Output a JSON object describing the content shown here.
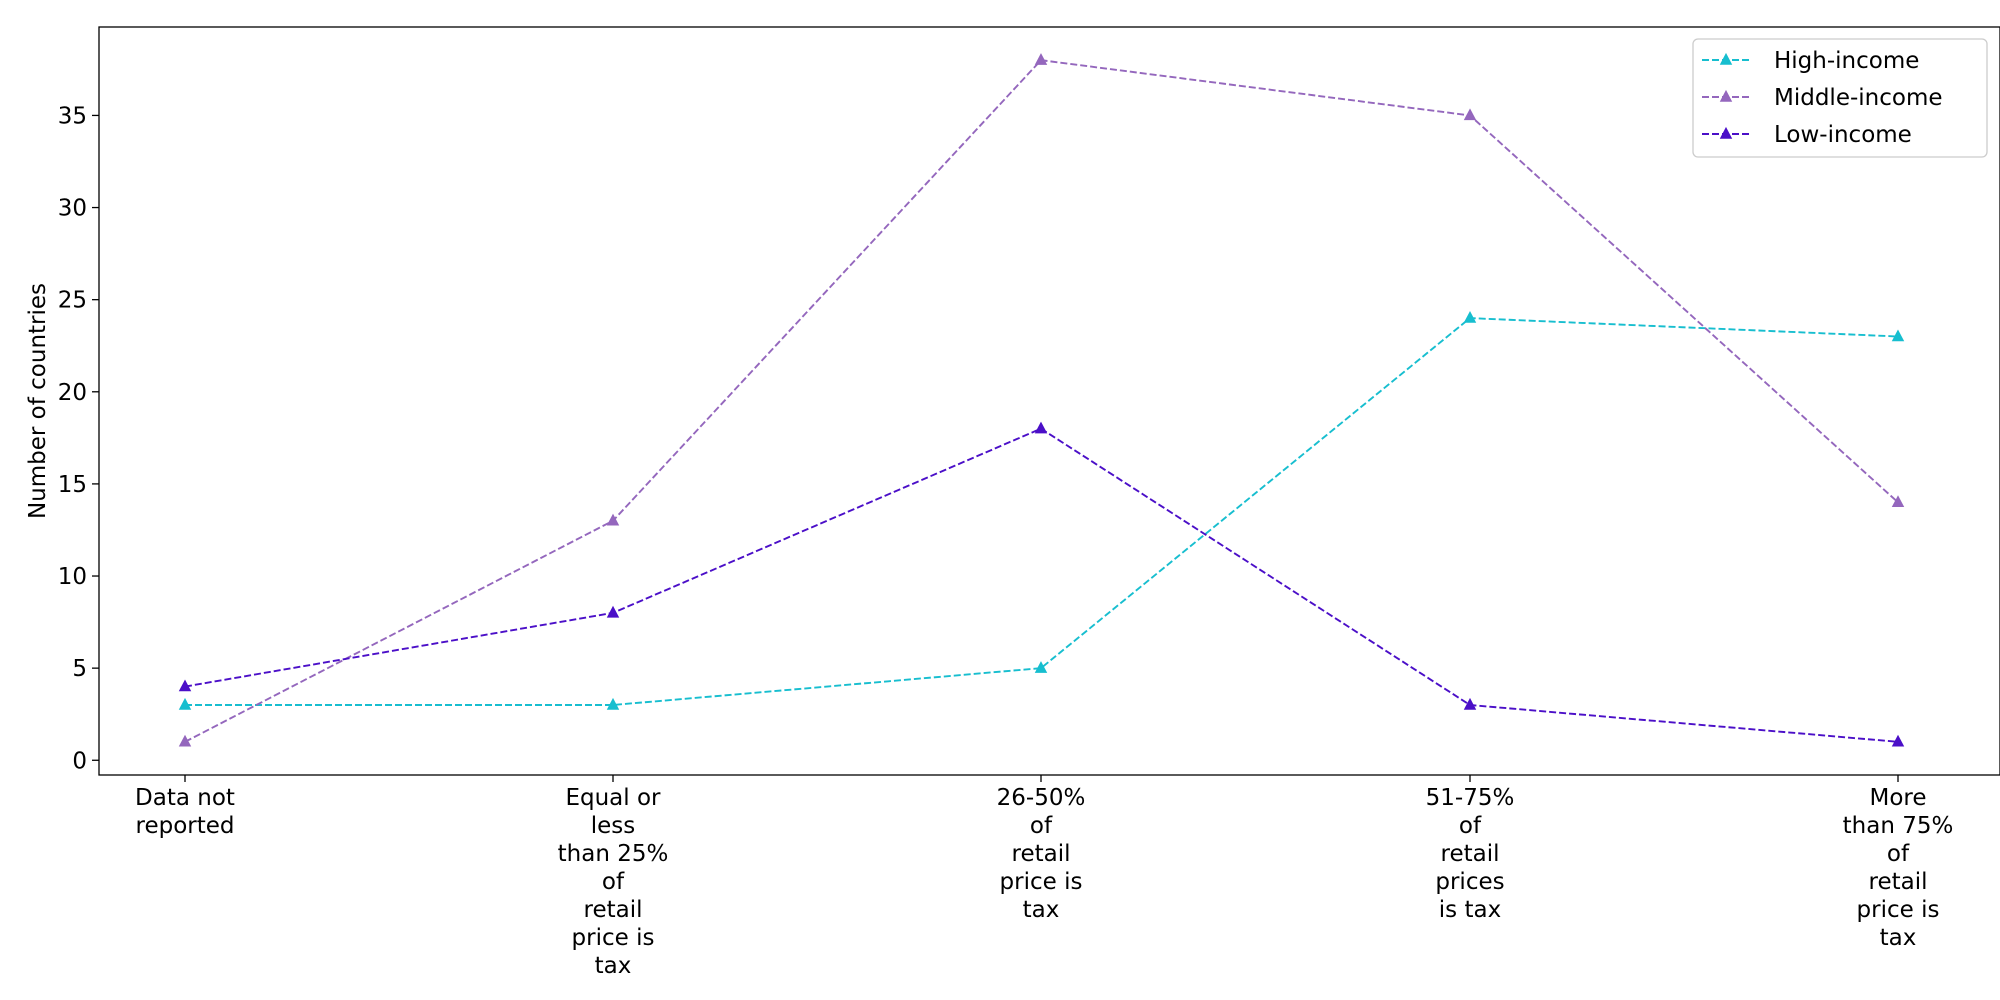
{
  "chart_data": {
    "type": "line",
    "title": "",
    "xlabel": "",
    "ylabel": "Number of countries",
    "categories": [
      [
        "Data not",
        "reported"
      ],
      [
        "Equal or",
        "less",
        "than 25%",
        "of",
        "retail",
        "price is",
        "tax"
      ],
      [
        "26-50%",
        "of",
        "retail",
        "price is",
        "tax"
      ],
      [
        "51-75%",
        "of",
        "retail",
        "prices",
        "is tax"
      ],
      [
        "More",
        "than 75%",
        "of",
        "retail",
        "price is",
        "tax"
      ]
    ],
    "ylim": [
      -0.8,
      39.8
    ],
    "yticks": [
      0,
      5,
      10,
      15,
      20,
      25,
      30,
      35
    ],
    "grid": false,
    "legend_position": "top-right",
    "series": [
      {
        "name": "High-income",
        "color": "#17becf",
        "marker": "triangle",
        "line_style": "dashed",
        "values": [
          3,
          3,
          5,
          24,
          23
        ]
      },
      {
        "name": "Middle-income",
        "color": "#9467bd",
        "marker": "triangle",
        "line_style": "dashed",
        "values": [
          1,
          13,
          38,
          35,
          14
        ]
      },
      {
        "name": "Low-income",
        "color": "#4b0fc8",
        "marker": "triangle",
        "line_style": "dashed",
        "values": [
          4,
          8,
          18,
          3,
          1
        ]
      }
    ]
  }
}
